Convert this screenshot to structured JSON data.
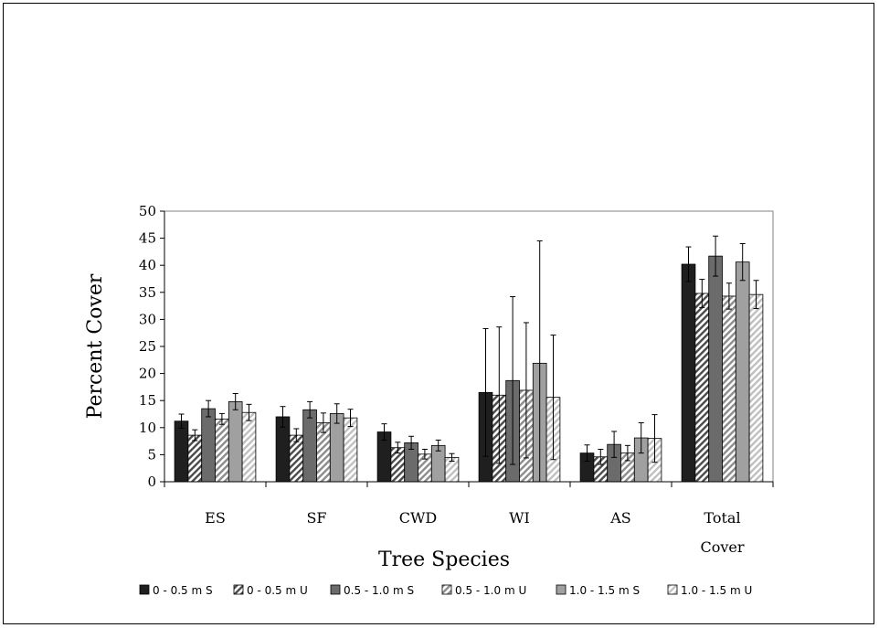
{
  "chart_data": {
    "type": "bar",
    "xlabel": "Tree Species",
    "ylabel": "Percent Cover",
    "ylim": [
      0,
      50
    ],
    "yticks": [
      0,
      5,
      10,
      15,
      20,
      25,
      30,
      35,
      40,
      45,
      50
    ],
    "categories": [
      [
        "ES"
      ],
      [
        "SF"
      ],
      [
        "CWD"
      ],
      [
        "WI"
      ],
      [
        "AS"
      ],
      [
        "Total",
        "Cover"
      ]
    ],
    "series": [
      {
        "name": "0 - 0.5 m S",
        "fill": "#1f1f1f",
        "pattern": "solid",
        "values": [
          11.2,
          12.0,
          9.2,
          16.5,
          5.3,
          40.2
        ],
        "errors": [
          1.3,
          1.9,
          1.5,
          11.8,
          1.5,
          3.2
        ]
      },
      {
        "name": "0 - 0.5 m U",
        "fill": "#4a4a4a",
        "pattern": "hatch",
        "values": [
          8.6,
          8.6,
          6.3,
          16.0,
          4.6,
          34.8
        ],
        "errors": [
          1.0,
          1.2,
          1.0,
          12.6,
          1.4,
          2.6
        ]
      },
      {
        "name": "0.5 - 1.0 m S",
        "fill": "#6b6b6b",
        "pattern": "solid",
        "values": [
          13.5,
          13.3,
          7.2,
          18.7,
          6.9,
          41.7
        ],
        "errors": [
          1.5,
          1.5,
          1.2,
          15.5,
          2.4,
          3.7
        ]
      },
      {
        "name": "0.5 - 1.0 m U",
        "fill": "#8c8c8c",
        "pattern": "hatch",
        "values": [
          11.6,
          10.9,
          5.1,
          16.9,
          5.3,
          34.3
        ],
        "errors": [
          1.0,
          1.8,
          0.9,
          12.5,
          1.4,
          2.4
        ]
      },
      {
        "name": "1.0 - 1.5 m S",
        "fill": "#a0a0a0",
        "pattern": "solid",
        "values": [
          14.8,
          12.6,
          6.7,
          21.9,
          8.1,
          40.6
        ],
        "errors": [
          1.5,
          1.8,
          1.0,
          22.6,
          2.8,
          3.4
        ]
      },
      {
        "name": "1.0 - 1.5 m U",
        "fill": "#c0c0c0",
        "pattern": "hatch",
        "values": [
          12.8,
          11.8,
          4.5,
          15.6,
          8.0,
          34.6
        ],
        "errors": [
          1.5,
          1.6,
          0.7,
          11.5,
          4.4,
          2.6
        ]
      }
    ]
  }
}
